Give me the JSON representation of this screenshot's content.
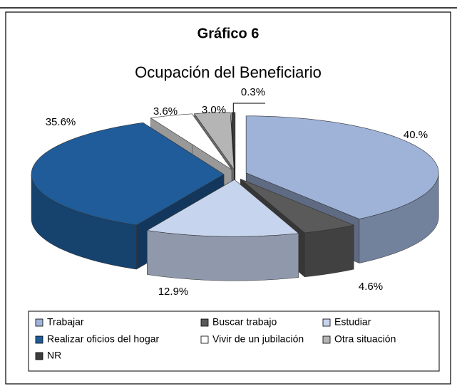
{
  "chart_data": {
    "type": "pie",
    "title": "Gráfico 6",
    "subtitle": "Ocupación del Beneficiario",
    "categories": [
      "Trabajar",
      "Buscar trabajo",
      "Estudiar",
      "Realizar oficios del hogar",
      "Vivir de un jubilación",
      "Otra situación",
      "NR"
    ],
    "values": [
      40.0,
      4.6,
      12.9,
      35.6,
      3.6,
      3.0,
      0.3
    ],
    "value_labels": [
      "40.%",
      "4.6%",
      "12.9%",
      "35.6%",
      "3.6%",
      "3.0%",
      "0.3%"
    ],
    "colors": [
      "#9fb3d9",
      "#5a5a5a",
      "#c6d4ee",
      "#1f5c99",
      "#ffffff",
      "#b5b5b5",
      "#3c3c3c"
    ],
    "legend": "bottom"
  }
}
